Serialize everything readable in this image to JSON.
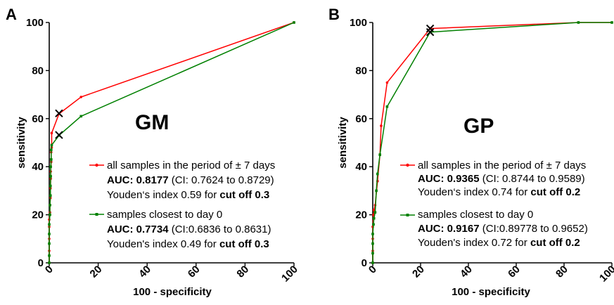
{
  "colors": {
    "red": "#ff0000",
    "green": "#008000"
  },
  "panels": [
    {
      "panel_label": "A",
      "chart_title": "GM",
      "xlabel": "100 - specificity",
      "ylabel": "sensitivity",
      "legend": [
        {
          "name": "all samples in the period of ± 7 days",
          "auc_label": "AUC: 0.8177",
          "ci": " (CI: 0.7624 to 0.8729)",
          "youden": "Youden‘s index 0.59 for ",
          "cutoff": "cut off 0.3"
        },
        {
          "name": "samples closest to day 0",
          "auc_label": "AUC: 0.7734",
          "ci": " (CI:0.6836 to 0.8631)",
          "youden": "Youden's index 0.49 for ",
          "cutoff": "cut off 0.3"
        }
      ]
    },
    {
      "panel_label": "B",
      "chart_title": "GP",
      "xlabel": "100 - specificity",
      "ylabel": "sensitivity",
      "legend": [
        {
          "name": "all samples in the period of ± 7 days",
          "auc_label": "AUC: 0.9365",
          "ci": "  (CI: 0.8744 to 0.9589)",
          "youden": "Youden‘s index 0.74 for ",
          "cutoff": "cut off 0.2"
        },
        {
          "name": "samples closest to day 0",
          "auc_label": "AUC: 0.9167",
          "ci": " (CI:0.89778 to 0.9652)",
          "youden": "Youden's index 0.72 for ",
          "cutoff": "cut off 0.2"
        }
      ]
    }
  ],
  "chart_data": [
    {
      "type": "line",
      "title": "GM",
      "xlabel": "100 - specificity",
      "ylabel": "sensitivity",
      "xlim": [
        0,
        100
      ],
      "ylim": [
        0,
        100
      ],
      "xticks": [
        0,
        20,
        40,
        60,
        80,
        100
      ],
      "yticks": [
        0,
        20,
        40,
        60,
        80,
        100
      ],
      "grid": false,
      "legend_position": "right",
      "series": [
        {
          "name": "all samples in the period of ± 7 days",
          "color": "#ff0000",
          "x": [
            0,
            0,
            0,
            0,
            0,
            0.3,
            0.3,
            0.5,
            0.5,
            0.6,
            0.6,
            0.8,
            0.8,
            1,
            1,
            4,
            13,
            100
          ],
          "y": [
            0,
            5,
            10,
            15,
            18,
            21,
            24,
            27,
            31,
            35,
            38,
            42,
            46,
            48,
            54,
            62,
            69,
            100
          ],
          "cutoff_point": {
            "x": 4,
            "y": 62.2
          }
        },
        {
          "name": "samples closest to day 0",
          "color": "#008000",
          "x": [
            0,
            0,
            0,
            0,
            0,
            0.3,
            0.3,
            0.5,
            0.5,
            0.6,
            0.6,
            0.8,
            0.8,
            1,
            4,
            13,
            100
          ],
          "y": [
            0,
            3,
            8,
            12,
            16,
            20,
            24,
            28,
            32,
            36,
            40,
            43,
            47,
            49,
            53,
            61,
            100
          ],
          "cutoff_point": {
            "x": 4,
            "y": 53.2
          }
        }
      ]
    },
    {
      "type": "line",
      "title": "GP",
      "xlabel": "100 - specificity",
      "ylabel": "sensitivity",
      "xlim": [
        0,
        100
      ],
      "ylim": [
        0,
        100
      ],
      "xticks": [
        0,
        20,
        40,
        60,
        80,
        100
      ],
      "yticks": [
        0,
        20,
        40,
        60,
        80,
        100
      ],
      "grid": false,
      "legend_position": "right",
      "series": [
        {
          "name": "all samples in the period of ± 7 days",
          "color": "#ff0000",
          "x": [
            0,
            0,
            0,
            0,
            0.3,
            0.5,
            1,
            2,
            3,
            3.5,
            6,
            24,
            86,
            100
          ],
          "y": [
            0,
            5,
            10,
            15,
            20,
            22,
            24,
            34,
            45,
            57,
            75,
            97.5,
            100,
            100
          ],
          "cutoff_point": {
            "x": 24,
            "y": 97.5
          }
        },
        {
          "name": "samples closest to day 0",
          "color": "#008000",
          "x": [
            0,
            0,
            0,
            0,
            0.3,
            0.5,
            1,
            1.5,
            2,
            3,
            6,
            24,
            86,
            100
          ],
          "y": [
            0,
            4,
            8,
            12,
            16,
            18.5,
            21,
            30,
            37,
            45,
            65,
            96,
            100,
            100
          ],
          "cutoff_point": {
            "x": 24,
            "y": 96
          }
        }
      ]
    }
  ]
}
